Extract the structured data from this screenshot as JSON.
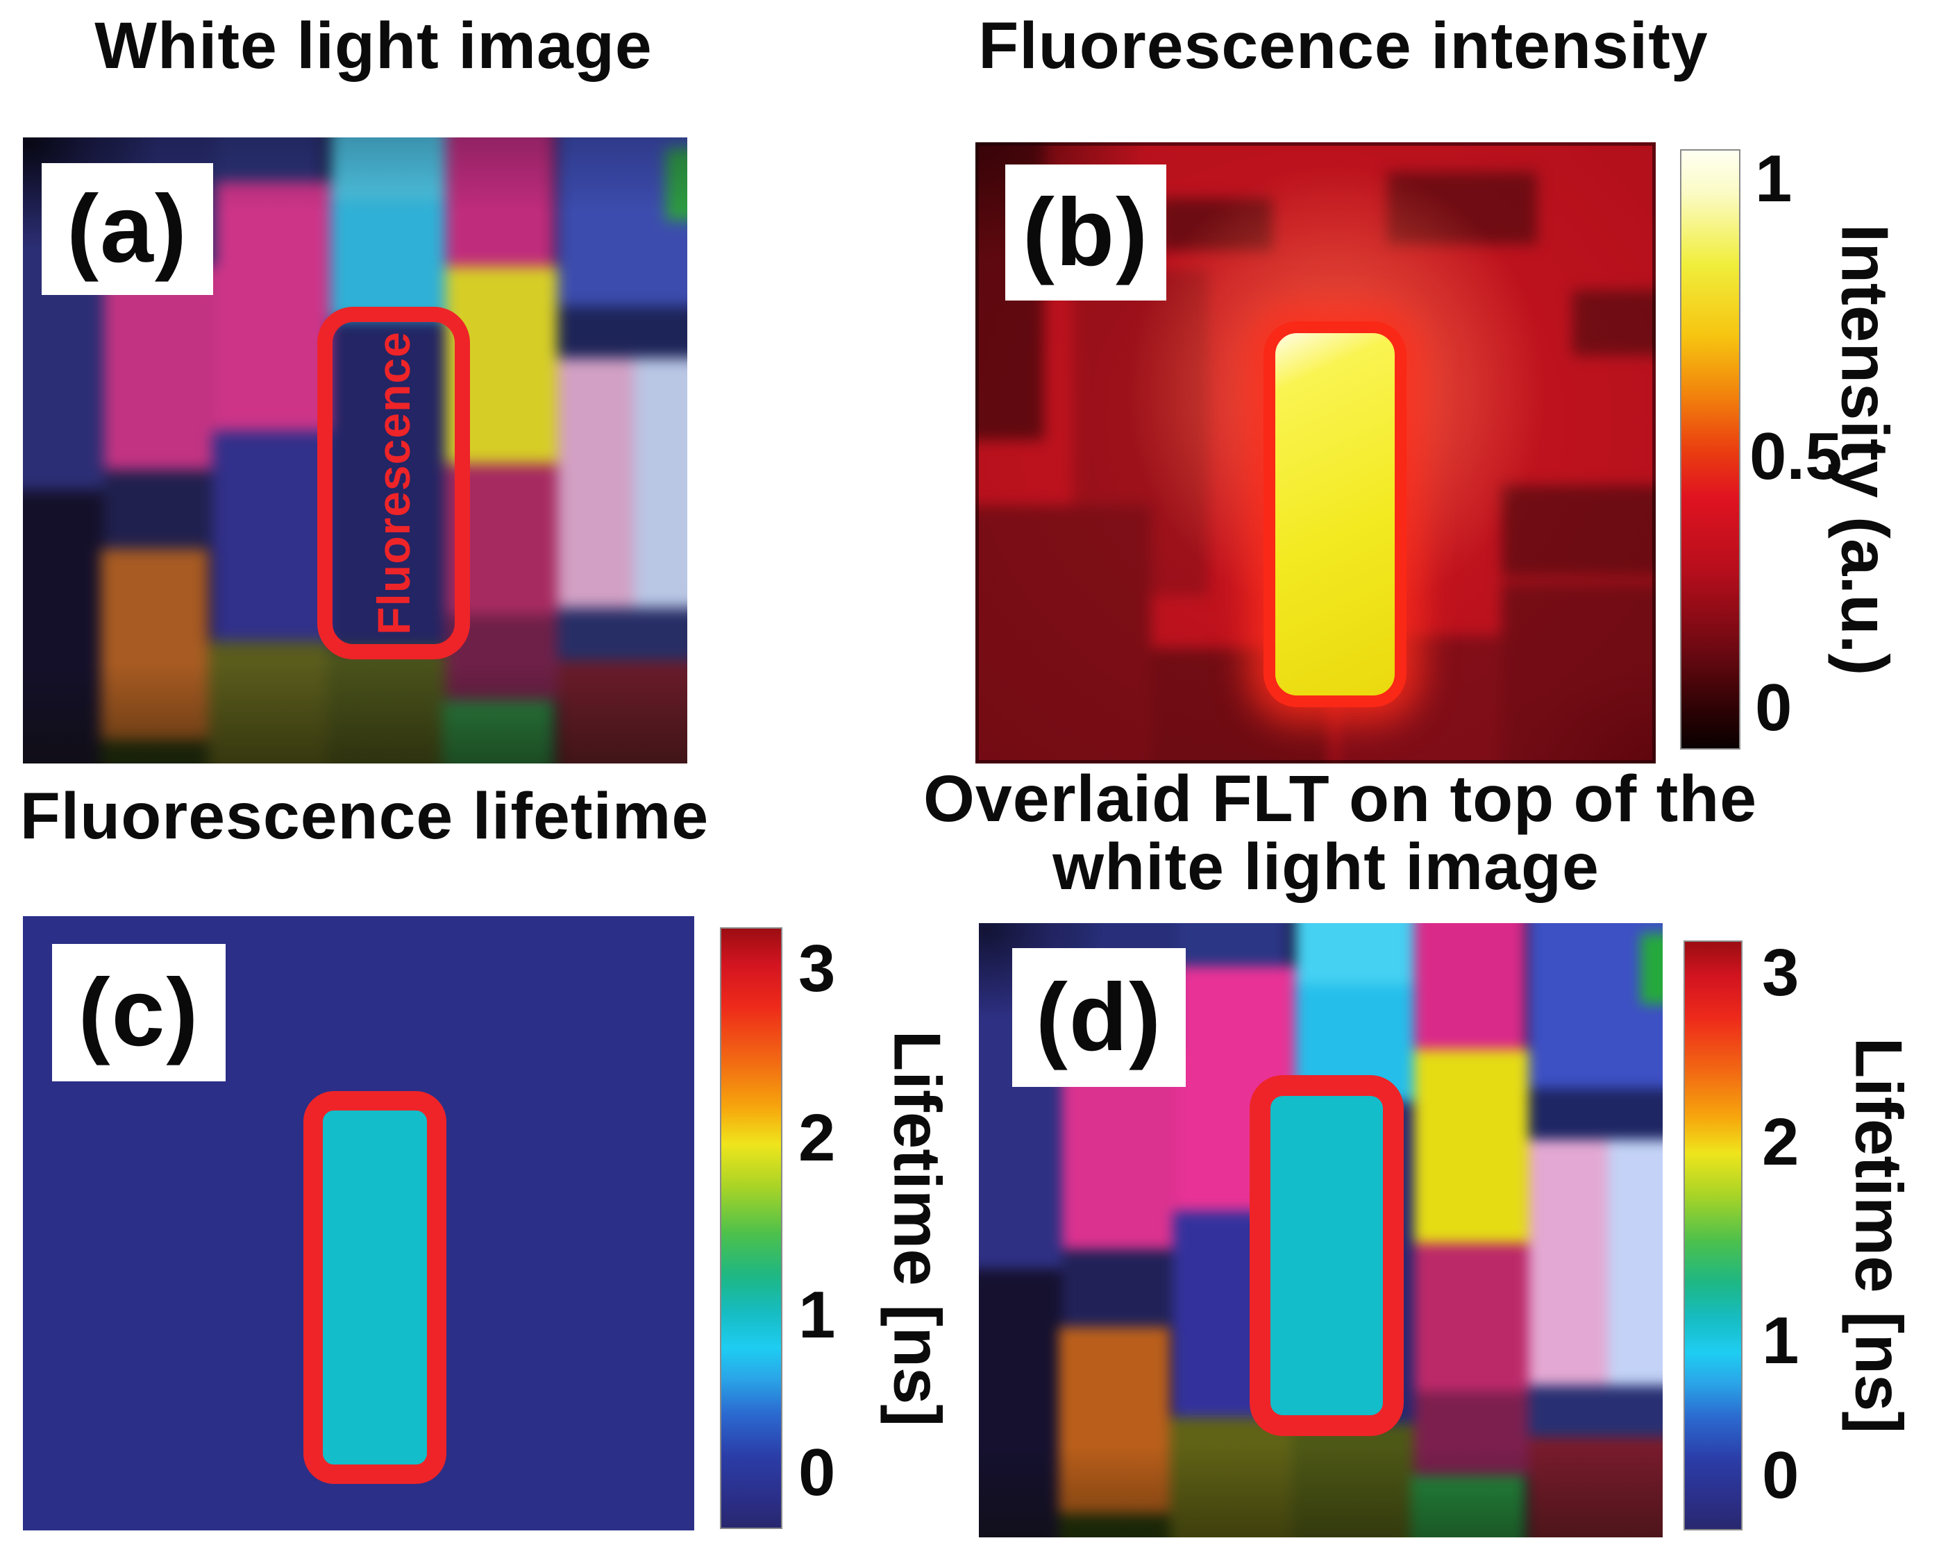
{
  "panels": {
    "a": {
      "label": "(a)",
      "title": "White light image",
      "roi_label": "Fluorescence"
    },
    "b": {
      "label": "(b)",
      "title": "Fluorescence intensity"
    },
    "c": {
      "label": "(c)",
      "title": "Fluorescence lifetime"
    },
    "d": {
      "label": "(d)",
      "title_lines": [
        "Overlaid FLT on top of the",
        "white light image"
      ]
    }
  },
  "colorbars": {
    "intensity": {
      "axis_label": "Intensity (a.u.)",
      "ticks": [
        "1",
        "0.5",
        "0"
      ],
      "range": [
        0,
        1
      ],
      "colormap": "hot"
    },
    "lifetime_c": {
      "axis_label": "Lifetime [ns]",
      "ticks": [
        "3",
        "2",
        "1",
        "0"
      ],
      "range": [
        0,
        3
      ],
      "colormap": "jet"
    },
    "lifetime_d": {
      "axis_label": "Lifetime [ns]",
      "ticks": [
        "3",
        "2",
        "1",
        "0"
      ],
      "range": [
        0,
        3
      ],
      "colormap": "jet"
    }
  },
  "colors": {
    "roi_red": "#ee2428",
    "lifetime_cyan": "#13bdc9",
    "flt_background_blue": "#2b2f87",
    "intensity_yellow": "#f3ea22",
    "intensity_background_red": "#bd131f"
  }
}
